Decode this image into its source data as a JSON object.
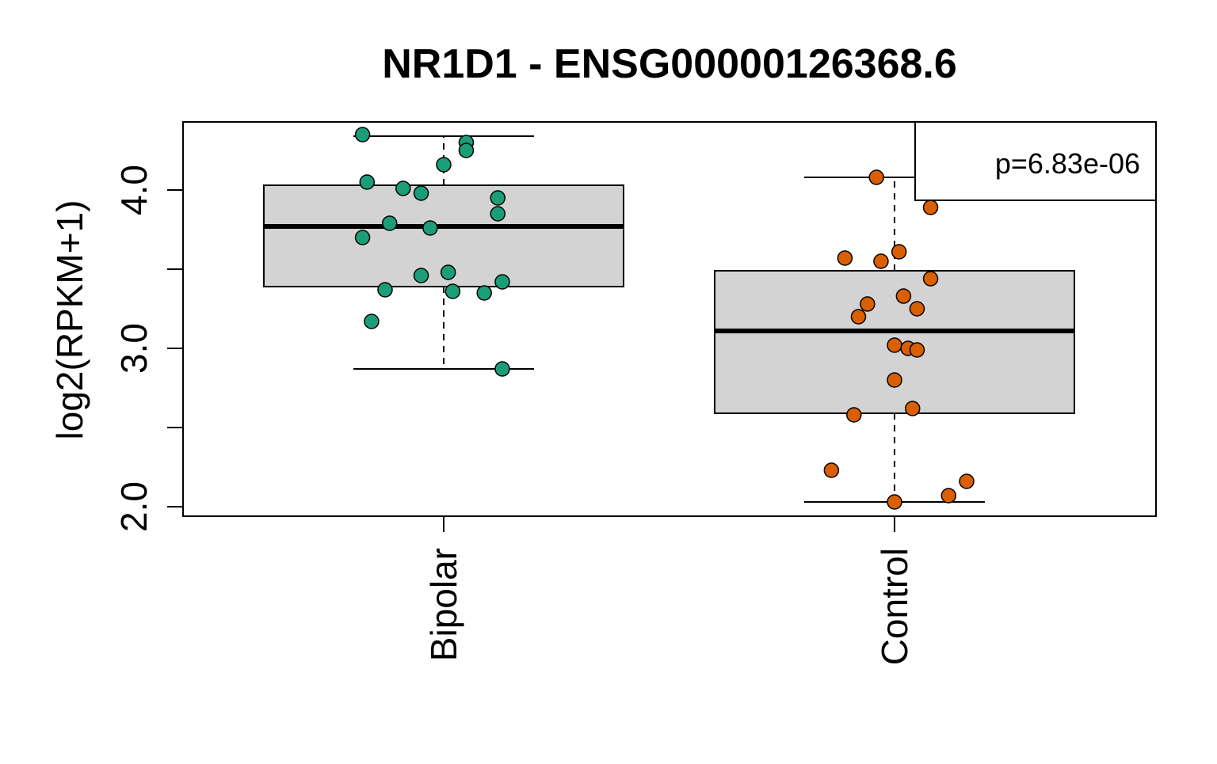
{
  "chart_data": {
    "type": "box",
    "title": "NR1D1 - ENSG00000126368.6",
    "xlabel": "",
    "ylabel": "log2(RPKM+1)",
    "ylim": [
      1.94,
      4.43
    ],
    "yticks": [
      2.0,
      2.5,
      3.0,
      3.5,
      4.0
    ],
    "ytick_labels": [
      "2.0",
      "",
      "3.0",
      "",
      "4.0"
    ],
    "categories": [
      "Bipolar",
      "Control"
    ],
    "annotation": "p=6.83e-06",
    "legend_position": "top-right",
    "grid": false,
    "box_fill": "#d3d3d3",
    "series": [
      {
        "category": "Bipolar",
        "color": "#1b9e77",
        "stats": {
          "whisker_low": 2.87,
          "q1": 3.39,
          "median": 3.77,
          "q3": 4.03,
          "whisker_high": 4.34
        },
        "points": [
          {
            "x": -0.18,
            "y": 4.35
          },
          {
            "x": 0.05,
            "y": 4.3
          },
          {
            "x": 0.05,
            "y": 4.25
          },
          {
            "x": 0.0,
            "y": 4.16
          },
          {
            "x": -0.17,
            "y": 4.05
          },
          {
            "x": -0.09,
            "y": 4.01
          },
          {
            "x": -0.05,
            "y": 3.98
          },
          {
            "x": 0.12,
            "y": 3.95
          },
          {
            "x": 0.12,
            "y": 3.85
          },
          {
            "x": -0.12,
            "y": 3.79
          },
          {
            "x": -0.03,
            "y": 3.76
          },
          {
            "x": -0.18,
            "y": 3.7
          },
          {
            "x": 0.01,
            "y": 3.48
          },
          {
            "x": -0.05,
            "y": 3.46
          },
          {
            "x": 0.13,
            "y": 3.42
          },
          {
            "x": -0.13,
            "y": 3.37
          },
          {
            "x": 0.02,
            "y": 3.36
          },
          {
            "x": 0.09,
            "y": 3.35
          },
          {
            "x": -0.16,
            "y": 3.17
          },
          {
            "x": 0.13,
            "y": 2.87
          }
        ]
      },
      {
        "category": "Control",
        "color": "#d95f02",
        "stats": {
          "whisker_low": 2.03,
          "q1": 2.59,
          "median": 3.11,
          "q3": 3.49,
          "whisker_high": 4.08
        },
        "points": [
          {
            "x": -0.04,
            "y": 4.08
          },
          {
            "x": 0.08,
            "y": 3.89
          },
          {
            "x": -0.11,
            "y": 3.57
          },
          {
            "x": 0.01,
            "y": 3.61
          },
          {
            "x": -0.03,
            "y": 3.55
          },
          {
            "x": 0.08,
            "y": 3.44
          },
          {
            "x": 0.02,
            "y": 3.33
          },
          {
            "x": -0.06,
            "y": 3.28
          },
          {
            "x": 0.05,
            "y": 3.25
          },
          {
            "x": -0.08,
            "y": 3.2
          },
          {
            "x": 0.0,
            "y": 3.02
          },
          {
            "x": 0.03,
            "y": 3.0
          },
          {
            "x": 0.05,
            "y": 2.99
          },
          {
            "x": 0.0,
            "y": 2.8
          },
          {
            "x": 0.04,
            "y": 2.62
          },
          {
            "x": -0.09,
            "y": 2.58
          },
          {
            "x": -0.14,
            "y": 2.23
          },
          {
            "x": 0.16,
            "y": 2.16
          },
          {
            "x": 0.12,
            "y": 2.07
          },
          {
            "x": 0.0,
            "y": 2.03
          }
        ]
      }
    ]
  }
}
